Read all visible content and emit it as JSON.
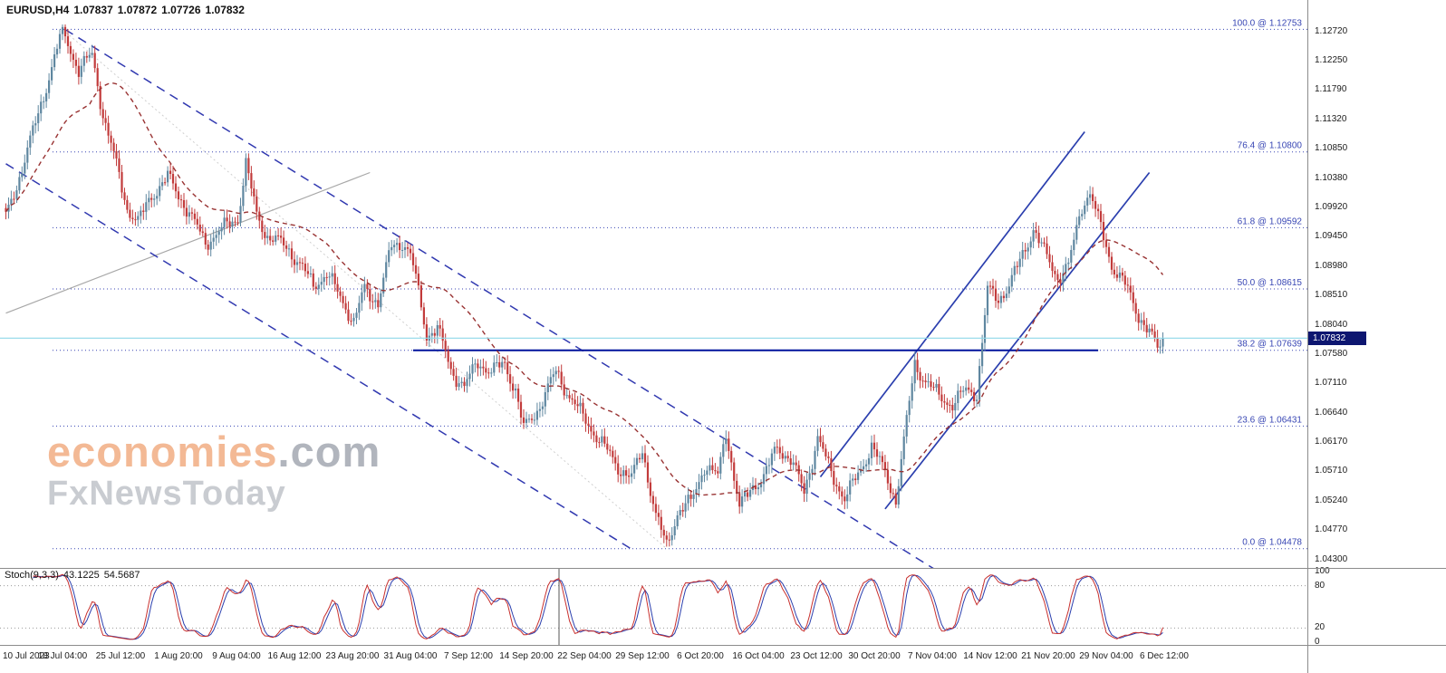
{
  "header": {
    "symbol_period": "EURUSD,H4",
    "open": "1.07837",
    "high": "1.07872",
    "low": "1.07726",
    "close": "1.07832"
  },
  "watermark": {
    "brand": "economies",
    "brand_suffix": ".com",
    "tagline": "FxNewsToday"
  },
  "chart_data": {
    "type": "candlestick",
    "symbol": "EURUSD",
    "timeframe": "H4",
    "bars": 430,
    "ylim": [
      1.0417,
      1.1322
    ],
    "current_price": "1.07832",
    "price_axis_labels": [
      "1.12720",
      "1.12250",
      "1.11790",
      "1.11320",
      "1.10850",
      "1.10380",
      "1.09920",
      "1.09450",
      "1.08980",
      "1.08510",
      "1.08040",
      "1.07580",
      "1.07110",
      "1.06640",
      "1.06170",
      "1.05710",
      "1.05240",
      "1.04770",
      "1.04300"
    ],
    "time_axis_labels": [
      "10 Jul 2023",
      "18 Jul 04:00",
      "25 Jul 12:00",
      "1 Aug 20:00",
      "9 Aug 04:00",
      "16 Aug 12:00",
      "23 Aug 20:00",
      "31 Aug 04:00",
      "7 Sep 12:00",
      "14 Sep 20:00",
      "22 Sep 04:00",
      "29 Sep 12:00",
      "6 Oct 20:00",
      "16 Oct 04:00",
      "23 Oct 12:00",
      "30 Oct 20:00",
      "7 Nov 04:00",
      "14 Nov 12:00",
      "21 Nov 20:00",
      "29 Nov 04:00",
      "6 Dec 12:00"
    ],
    "fib_levels": [
      {
        "label": "100.0 @ 1.12753",
        "pct": 100.0,
        "price": 1.12753
      },
      {
        "label": "76.4 @ 1.10800",
        "pct": 76.4,
        "price": 1.108
      },
      {
        "label": "61.8 @ 1.09592",
        "pct": 61.8,
        "price": 1.09592
      },
      {
        "label": "50.0 @ 1.08615",
        "pct": 50.0,
        "price": 1.08615
      },
      {
        "label": "38.2 @ 1.07639",
        "pct": 38.2,
        "price": 1.07639
      },
      {
        "label": "23.6 @ 1.06431",
        "pct": 23.6,
        "price": 1.06431
      },
      {
        "label": "0.0 @ 1.04478",
        "pct": 0.0,
        "price": 1.04478
      }
    ],
    "price_path_anchors": [
      [
        0,
        1.0975
      ],
      [
        5,
        1.104
      ],
      [
        12,
        1.114
      ],
      [
        21,
        1.1275
      ],
      [
        27,
        1.121
      ],
      [
        32,
        1.1235
      ],
      [
        36,
        1.114
      ],
      [
        40,
        1.1075
      ],
      [
        45,
        1.099
      ],
      [
        49,
        1.0968
      ],
      [
        54,
        1.101
      ],
      [
        60,
        1.104
      ],
      [
        67,
        1.099
      ],
      [
        74,
        1.0935
      ],
      [
        81,
        1.096
      ],
      [
        86,
        1.0975
      ],
      [
        89,
        1.106
      ],
      [
        93,
        1.098
      ],
      [
        97,
        1.0945
      ],
      [
        104,
        1.093
      ],
      [
        109,
        1.09
      ],
      [
        114,
        1.0868
      ],
      [
        119,
        1.0885
      ],
      [
        124,
        1.085
      ],
      [
        129,
        1.0808
      ],
      [
        133,
        1.0862
      ],
      [
        138,
        1.084
      ],
      [
        143,
        1.093
      ],
      [
        148,
        1.0935
      ],
      [
        151,
        1.09
      ],
      [
        156,
        1.0788
      ],
      [
        160,
        1.08
      ],
      [
        165,
        1.0732
      ],
      [
        170,
        1.0706
      ],
      [
        175,
        1.0745
      ],
      [
        180,
        1.073
      ],
      [
        185,
        1.0742
      ],
      [
        189,
        1.07
      ],
      [
        192,
        1.0638
      ],
      [
        197,
        1.0668
      ],
      [
        204,
        1.073
      ],
      [
        209,
        1.069
      ],
      [
        215,
        1.0652
      ],
      [
        221,
        1.0615
      ],
      [
        227,
        1.0578
      ],
      [
        232,
        1.056
      ],
      [
        236,
        1.0605
      ],
      [
        241,
        1.05
      ],
      [
        245,
        1.0452
      ],
      [
        249,
        1.0505
      ],
      [
        254,
        1.0522
      ],
      [
        259,
        1.058
      ],
      [
        264,
        1.0562
      ],
      [
        267,
        1.0636
      ],
      [
        272,
        1.0512
      ],
      [
        277,
        1.0548
      ],
      [
        281,
        1.0562
      ],
      [
        286,
        1.061
      ],
      [
        291,
        1.059
      ],
      [
        296,
        1.0538
      ],
      [
        301,
        1.0625
      ],
      [
        306,
        1.0568
      ],
      [
        311,
        1.0528
      ],
      [
        316,
        1.0565
      ],
      [
        321,
        1.0612
      ],
      [
        326,
        1.0568
      ],
      [
        330,
        1.0525
      ],
      [
        334,
        1.065
      ],
      [
        337,
        1.0742
      ],
      [
        341,
        1.0715
      ],
      [
        346,
        1.069
      ],
      [
        351,
        1.0678
      ],
      [
        356,
        1.07
      ],
      [
        360,
        1.0695
      ],
      [
        364,
        1.086
      ],
      [
        368,
        1.0845
      ],
      [
        372,
        1.0868
      ],
      [
        376,
        1.0905
      ],
      [
        381,
        1.0958
      ],
      [
        385,
        1.092
      ],
      [
        390,
        1.088
      ],
      [
        394,
        1.0898
      ],
      [
        399,
        1.0995
      ],
      [
        402,
        1.1016
      ],
      [
        406,
        1.0958
      ],
      [
        410,
        1.09
      ],
      [
        415,
        1.0868
      ],
      [
        420,
        1.082
      ],
      [
        424,
        1.0792
      ],
      [
        427,
        1.0766
      ],
      [
        429,
        1.07832
      ]
    ],
    "overlays": {
      "moving_average": {
        "type": "smoothed",
        "period": 32
      },
      "current_price_line": {
        "price": 1.07832
      },
      "support_line": {
        "price": 1.07639,
        "from_bar": 151,
        "to_bar": 405
      },
      "down_channel": [
        {
          "from": [
            22,
            1.1275
          ],
          "to": [
            350,
            1.04
          ]
        },
        {
          "from": [
            0,
            1.1061
          ],
          "to": [
            232,
            1.0447
          ]
        }
      ],
      "up_lines": [
        {
          "from": [
            302,
            1.0562
          ],
          "to": [
            400,
            1.1112
          ]
        },
        {
          "from": [
            326,
            1.0511
          ],
          "to": [
            424,
            1.1047
          ]
        }
      ],
      "gray_trendline": {
        "from": [
          0,
          1.0823
        ],
        "to": [
          135,
          1.1047
        ]
      },
      "fib_diagonal": {
        "from": [
          21,
          1.12753
        ],
        "to": [
          245,
          1.04478
        ]
      }
    },
    "colors": {
      "candle_up": "#5f87a0",
      "candle_down": "#c23b3b",
      "ma": "#993333",
      "fib": "#3846b4",
      "channel": "#3139b0",
      "up_line": "#2b3fae",
      "support": "#00129c",
      "current_line": "#8fd8e8",
      "gray_line": "#a8a8a8",
      "badge_bg": "#0d1670",
      "stoch_main": "#c8302e",
      "stoch_signal": "#2b3fae"
    },
    "stochastic": {
      "name": "Stoch(9,3,3)",
      "value_k": "43.1225",
      "value_d": "54.5687",
      "range": [
        0,
        100
      ],
      "guide_levels": [
        80,
        20
      ],
      "axis_labels": [
        "100",
        "80",
        "20",
        "0"
      ]
    }
  }
}
